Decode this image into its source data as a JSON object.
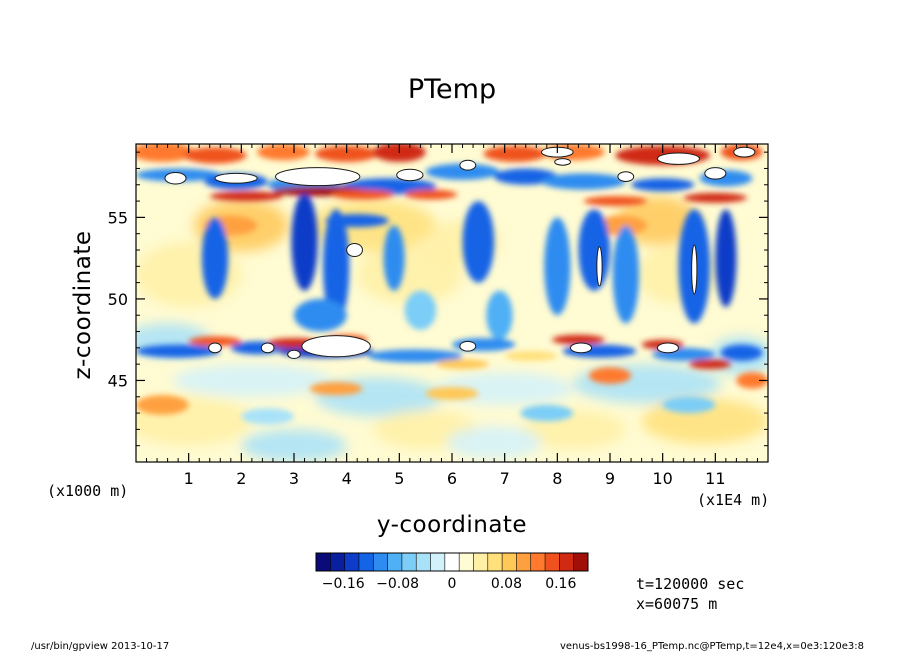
{
  "chart_data": {
    "type": "heatmap",
    "title": "PTemp",
    "xlabel": "y-coordinate",
    "ylabel": "z-coordinate",
    "x_unit": "(x1E4 m)",
    "y_unit": "(x1000 m)",
    "xlim": [
      0,
      12
    ],
    "ylim": [
      40,
      59.5
    ],
    "x_ticks": [
      "1",
      "2",
      "3",
      "4",
      "5",
      "6",
      "7",
      "8",
      "9",
      "10",
      "11"
    ],
    "y_ticks": [
      "45",
      "50",
      "55"
    ],
    "colorbar": {
      "min": -0.2,
      "max": 0.2,
      "tick_labels": [
        "−0.16",
        "−0.08",
        "0",
        "0.08",
        "0.16"
      ],
      "tick_values": [
        -0.16,
        -0.08,
        0,
        0.08,
        0.16
      ],
      "colors": [
        "#0a0a78",
        "#0a1fa0",
        "#0c3cc8",
        "#1464e6",
        "#2e8cf0",
        "#4fb0f5",
        "#7ccdf7",
        "#a8e2f9",
        "#d2f1fb",
        "#ffffff",
        "#fffbd2",
        "#fff0a6",
        "#ffe07a",
        "#ffc857",
        "#ffa040",
        "#ff7a2e",
        "#f0521f",
        "#d02a12",
        "#a01008"
      ]
    }
  },
  "annotations": {
    "time": "t=120000 sec",
    "position": "x=60075 m"
  },
  "footer": {
    "left": "/usr/bin/gpview  2013-10-17",
    "right": "venus-bs1998-16_PTemp.nc@PTemp,t=12e4,x=0e3:120e3:8"
  }
}
